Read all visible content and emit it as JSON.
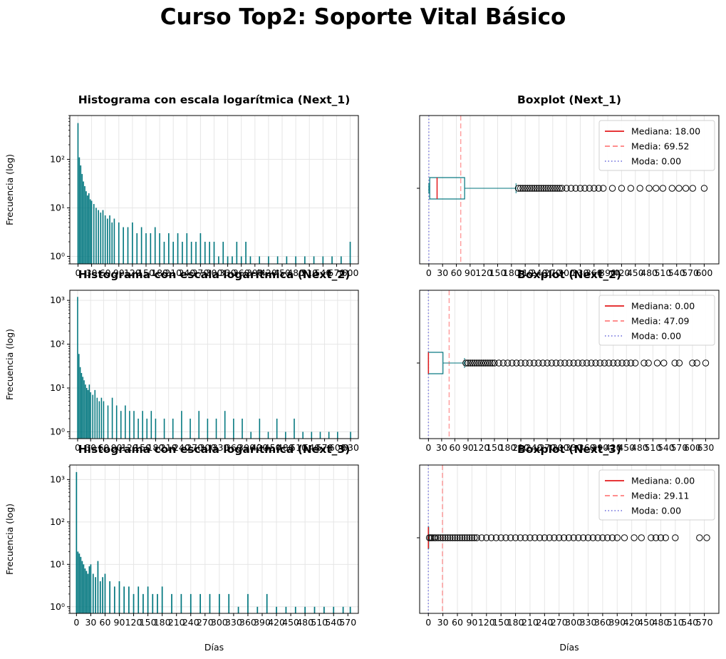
{
  "figure": {
    "title": "Curso Top2: Soporte Vital Básico"
  },
  "colors": {
    "bar": "#00767e",
    "box": "#00767e",
    "median": "#e31a1c",
    "mean": "#ff7f7f",
    "mode": "#7b7bdf",
    "grid": "#e6e6e6"
  },
  "chart_data": [
    {
      "type": "bar",
      "title": "Histograma con escala logarítmica (Next_1)",
      "xlabel": "",
      "ylabel": "Frecuencia (log)",
      "yscale": "log",
      "xlim": [
        -18,
        618
      ],
      "ylim": [
        0.7,
        800
      ],
      "xticks": [
        0,
        30,
        60,
        90,
        120,
        150,
        180,
        210,
        240,
        270,
        300,
        330,
        360,
        390,
        420,
        450,
        480,
        510,
        540,
        570,
        600
      ],
      "yticks": [
        {
          "v": 1,
          "label": "10⁰"
        },
        {
          "v": 10,
          "label": "10¹"
        },
        {
          "v": 100,
          "label": "10²"
        }
      ],
      "grid": true,
      "x": [
        0,
        3,
        6,
        9,
        12,
        15,
        18,
        21,
        24,
        27,
        30,
        35,
        40,
        45,
        50,
        55,
        60,
        65,
        70,
        75,
        80,
        90,
        100,
        110,
        120,
        130,
        140,
        150,
        160,
        170,
        180,
        190,
        200,
        210,
        220,
        230,
        240,
        250,
        260,
        270,
        280,
        290,
        300,
        310,
        320,
        330,
        340,
        350,
        360,
        370,
        380,
        400,
        420,
        440,
        460,
        480,
        500,
        520,
        540,
        560,
        580,
        600
      ],
      "values": [
        560,
        110,
        75,
        50,
        35,
        28,
        22,
        18,
        20,
        15,
        14,
        12,
        10,
        9,
        8,
        9,
        7,
        6,
        7,
        5,
        6,
        5,
        4,
        4,
        5,
        3,
        4,
        3,
        3,
        4,
        3,
        2,
        3,
        2,
        3,
        2,
        3,
        2,
        2,
        3,
        2,
        2,
        2,
        1,
        2,
        1,
        1,
        2,
        1,
        2,
        1,
        1,
        1,
        1,
        1,
        1,
        1,
        1,
        1,
        1,
        1,
        2
      ]
    },
    {
      "type": "boxplot",
      "title": "Boxplot (Next_1)",
      "xlabel": "",
      "xlim": [
        -20,
        632
      ],
      "xticks": [
        0,
        30,
        60,
        90,
        120,
        150,
        180,
        210,
        240,
        270,
        300,
        330,
        360,
        390,
        420,
        450,
        480,
        510,
        540,
        570,
        600
      ],
      "q1": 2,
      "median": 18,
      "q3": 78,
      "whisker_low": 0,
      "whisker_high": 190,
      "outliers": [
        195,
        200,
        205,
        210,
        215,
        220,
        225,
        230,
        235,
        240,
        245,
        250,
        255,
        260,
        265,
        270,
        275,
        280,
        285,
        290,
        300,
        310,
        320,
        330,
        340,
        350,
        360,
        370,
        380,
        400,
        420,
        440,
        460,
        480,
        495,
        510,
        530,
        545,
        560,
        575,
        600
      ],
      "mean": 69.52,
      "mode": 0.0,
      "legend": [
        "Mediana: 18.00",
        "Media: 69.52",
        "Moda: 0.00"
      ],
      "legend_loc": "upper right",
      "grid": true
    },
    {
      "type": "bar",
      "title": "Histograma con escala logarítmica (Next_2)",
      "xlabel": "",
      "ylabel": "Frecuencia (log)",
      "yscale": "log",
      "xlim": [
        -18,
        648
      ],
      "ylim": [
        0.7,
        1700
      ],
      "xticks": [
        0,
        30,
        60,
        90,
        120,
        150,
        180,
        210,
        240,
        270,
        300,
        330,
        360,
        390,
        420,
        450,
        480,
        510,
        540,
        570,
        600,
        630
      ],
      "yticks": [
        {
          "v": 1,
          "label": "10⁰"
        },
        {
          "v": 10,
          "label": "10¹"
        },
        {
          "v": 100,
          "label": "10²"
        },
        {
          "v": 1000,
          "label": "10³"
        }
      ],
      "grid": true,
      "x": [
        0,
        3,
        6,
        9,
        12,
        15,
        18,
        21,
        24,
        27,
        30,
        35,
        40,
        45,
        50,
        55,
        60,
        70,
        80,
        90,
        100,
        110,
        120,
        130,
        140,
        150,
        160,
        170,
        180,
        200,
        220,
        240,
        260,
        280,
        300,
        320,
        340,
        360,
        380,
        400,
        420,
        440,
        460,
        480,
        500,
        520,
        540,
        560,
        580,
        600,
        630
      ],
      "values": [
        1200,
        60,
        30,
        22,
        18,
        15,
        12,
        10,
        9,
        12,
        8,
        7,
        9,
        6,
        5,
        6,
        5,
        4,
        6,
        4,
        3,
        4,
        3,
        3,
        2,
        3,
        2,
        3,
        2,
        2,
        2,
        3,
        2,
        3,
        2,
        2,
        3,
        2,
        2,
        1,
        2,
        1,
        2,
        1,
        2,
        1,
        1,
        1,
        1,
        1,
        1
      ]
    },
    {
      "type": "boxplot",
      "title": "Boxplot (Next_2)",
      "xlabel": "",
      "xlim": [
        -20,
        660
      ],
      "xticks": [
        0,
        30,
        60,
        90,
        120,
        150,
        180,
        210,
        240,
        270,
        300,
        330,
        360,
        390,
        420,
        450,
        480,
        510,
        540,
        570,
        600,
        630
      ],
      "q1": 0,
      "median": 0,
      "q3": 33,
      "whisker_low": 0,
      "whisker_high": 82,
      "outliers": [
        85,
        90,
        95,
        100,
        105,
        110,
        115,
        120,
        125,
        130,
        135,
        140,
        145,
        150,
        160,
        170,
        180,
        190,
        200,
        210,
        220,
        230,
        240,
        250,
        260,
        270,
        280,
        290,
        300,
        310,
        320,
        330,
        340,
        350,
        360,
        370,
        380,
        390,
        400,
        410,
        420,
        430,
        440,
        450,
        460,
        470,
        490,
        500,
        520,
        535,
        560,
        570,
        600,
        610,
        630
      ],
      "mean": 47.09,
      "mode": 0.0,
      "legend": [
        "Mediana: 0.00",
        "Media: 47.09",
        "Moda: 0.00"
      ],
      "legend_loc": "upper right",
      "grid": true
    },
    {
      "type": "bar",
      "title": "Histograma con escala logarítmica (Next_3)",
      "xlabel": "Días",
      "ylabel": "Frecuencia (log)",
      "yscale": "log",
      "xlim": [
        -14,
        592
      ],
      "ylim": [
        0.7,
        2200
      ],
      "xticks": [
        0,
        30,
        60,
        90,
        120,
        150,
        180,
        210,
        240,
        270,
        300,
        330,
        360,
        390,
        420,
        450,
        480,
        510,
        540,
        570
      ],
      "yticks": [
        {
          "v": 1,
          "label": "10⁰"
        },
        {
          "v": 10,
          "label": "10¹"
        },
        {
          "v": 100,
          "label": "10²"
        },
        {
          "v": 1000,
          "label": "10³"
        }
      ],
      "grid": true,
      "x": [
        0,
        3,
        6,
        9,
        12,
        15,
        18,
        21,
        24,
        27,
        30,
        35,
        40,
        45,
        50,
        55,
        60,
        70,
        80,
        90,
        100,
        110,
        120,
        130,
        140,
        150,
        160,
        170,
        180,
        200,
        220,
        240,
        260,
        280,
        300,
        320,
        340,
        360,
        380,
        400,
        420,
        440,
        460,
        480,
        500,
        520,
        540,
        560,
        575
      ],
      "values": [
        1500,
        20,
        18,
        15,
        12,
        10,
        8,
        7,
        6,
        9,
        10,
        6,
        5,
        12,
        4,
        5,
        6,
        4,
        3,
        4,
        3,
        3,
        2,
        3,
        2,
        3,
        2,
        2,
        3,
        2,
        2,
        2,
        2,
        2,
        2,
        2,
        1,
        2,
        1,
        2,
        1,
        1,
        1,
        1,
        1,
        1,
        1,
        1,
        1
      ]
    },
    {
      "type": "boxplot",
      "title": "Boxplot (Next_3)",
      "xlabel": "Días",
      "xlim": [
        -18,
        600
      ],
      "xticks": [
        0,
        30,
        60,
        90,
        120,
        150,
        180,
        210,
        240,
        270,
        300,
        330,
        360,
        390,
        420,
        450,
        480,
        510,
        540,
        570
      ],
      "q1": 0,
      "median": 0,
      "q3": 0,
      "whisker_low": 0,
      "whisker_high": 0,
      "outliers": [
        2,
        5,
        8,
        12,
        15,
        20,
        25,
        30,
        35,
        40,
        45,
        50,
        55,
        60,
        65,
        70,
        75,
        80,
        85,
        90,
        95,
        100,
        110,
        120,
        130,
        140,
        150,
        160,
        170,
        180,
        190,
        200,
        210,
        220,
        230,
        240,
        250,
        260,
        270,
        280,
        290,
        300,
        310,
        320,
        330,
        340,
        350,
        360,
        370,
        380,
        390,
        405,
        425,
        440,
        460,
        470,
        480,
        490,
        510,
        560,
        575
      ],
      "mean": 29.11,
      "mode": 0.0,
      "legend": [
        "Mediana: 0.00",
        "Media: 29.11",
        "Moda: 0.00"
      ],
      "legend_loc": "upper right",
      "grid": true
    }
  ]
}
